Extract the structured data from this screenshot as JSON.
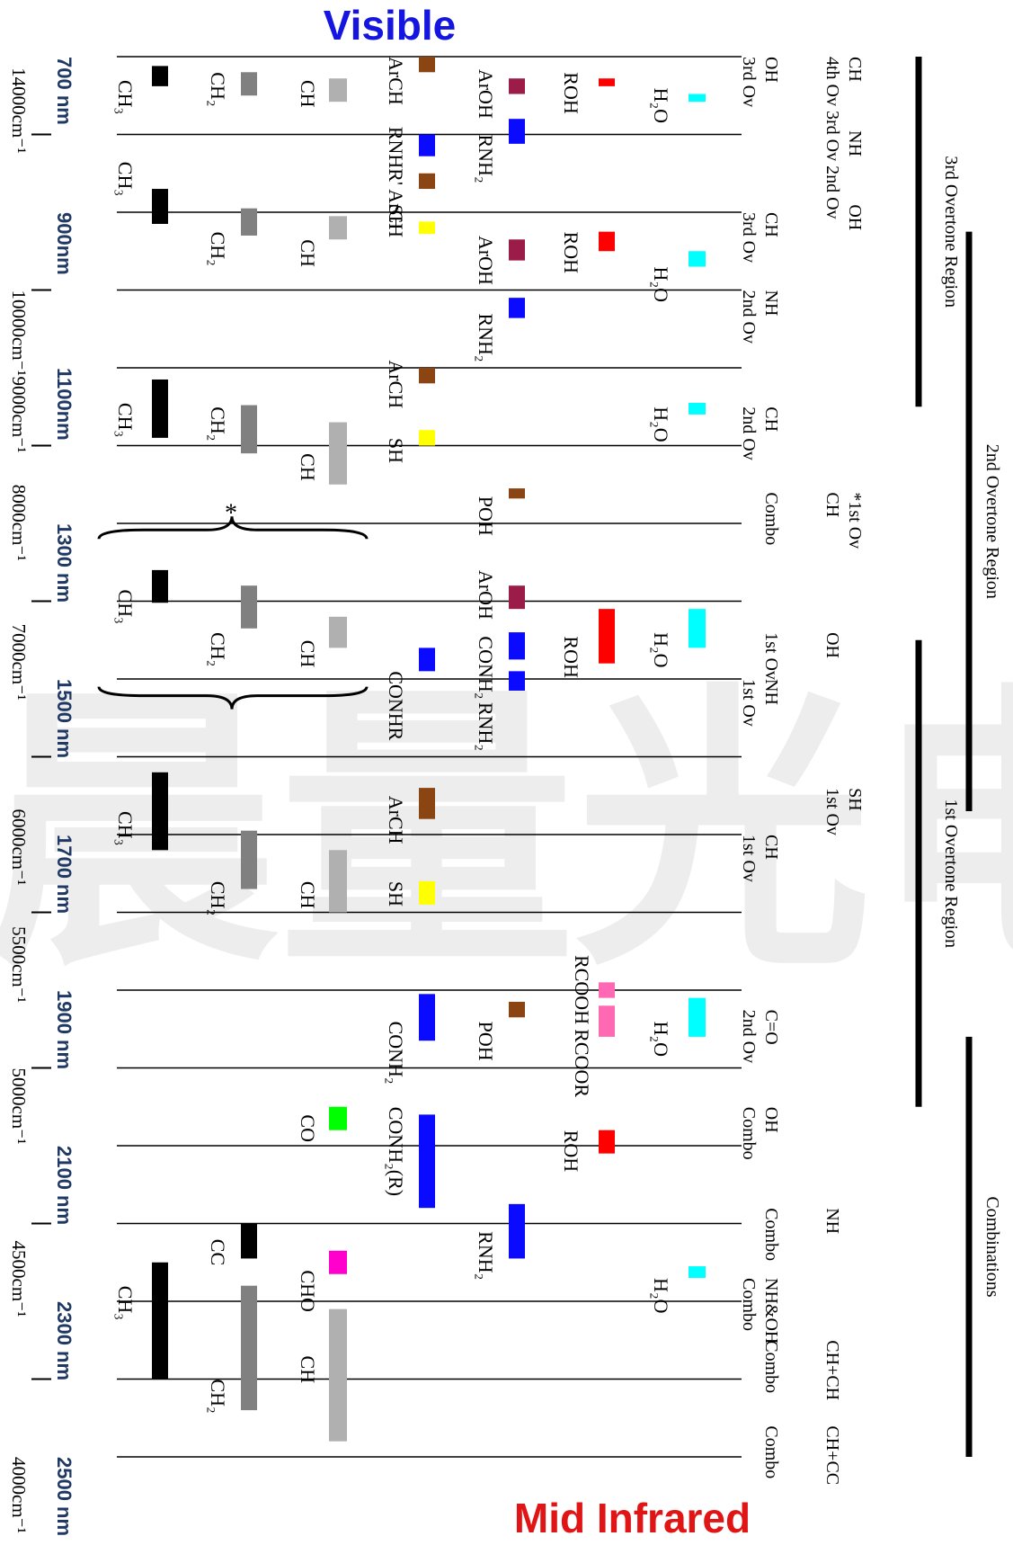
{
  "titles": {
    "top": "Visible",
    "bottom": "Mid Infrared",
    "top_color": "#1515e0",
    "bottom_color": "#e01515"
  },
  "watermark": "晨量光电",
  "chart_data": {
    "type": "band-assignment",
    "x_axis": {
      "unit": "nm",
      "range": [
        650,
        2570
      ],
      "wavelength_ticks": [
        {
          "nm": 700,
          "label": "700 nm"
        },
        {
          "nm": 900,
          "label": "900nm"
        },
        {
          "nm": 1100,
          "label": "1100nm"
        },
        {
          "nm": 1300,
          "label": "1300 nm"
        },
        {
          "nm": 1500,
          "label": "1500 nm"
        },
        {
          "nm": 1700,
          "label": "1700 nm"
        },
        {
          "nm": 1900,
          "label": "1900 nm"
        },
        {
          "nm": 2100,
          "label": "2100 nm"
        },
        {
          "nm": 2300,
          "label": "2300 nm"
        },
        {
          "nm": 2500,
          "label": "2500 nm"
        }
      ],
      "wavenumber_ticks": [
        {
          "nm": 714,
          "label": "14000cm⁻¹",
          "mark": "top"
        },
        {
          "nm": 1000,
          "label": "10000cm⁻¹",
          "mark": "bottom"
        },
        {
          "nm": 1111,
          "label": "9000cm⁻¹",
          "mark": "none"
        },
        {
          "nm": 1250,
          "label": "8000cm⁻¹",
          "mark": "bottom"
        },
        {
          "nm": 1429,
          "label": "7000cm⁻¹",
          "mark": "bottom"
        },
        {
          "nm": 1667,
          "label": "6000cm⁻¹",
          "mark": "bottom"
        },
        {
          "nm": 1818,
          "label": "5500cm⁻¹",
          "mark": "bottom"
        },
        {
          "nm": 2000,
          "label": "5000cm⁻¹",
          "mark": "bottom"
        },
        {
          "nm": 2222,
          "label": "4500cm⁻¹",
          "mark": "bottom"
        },
        {
          "nm": 2500,
          "label": "4000cm⁻¹",
          "mark": "top"
        }
      ],
      "minor_ticks": [
        800,
        1000,
        1200,
        1400,
        1600,
        1800,
        2000,
        2200,
        2400
      ]
    },
    "gridlines_nm": [
      700,
      800,
      900,
      1000,
      1100,
      1200,
      1300,
      1400,
      1500,
      1600,
      1700,
      1800,
      1900,
      2000,
      2100,
      2200,
      2300,
      2400,
      2500
    ],
    "regions": [
      {
        "name": "3rd Overtone Region",
        "range": [
          700,
          1150
        ]
      },
      {
        "name": "2nd Overtone Region",
        "range": [
          925,
          1670
        ]
      },
      {
        "name": "1st Overtone Region",
        "range": [
          1450,
          2050
        ]
      },
      {
        "name": "Combinations",
        "range": [
          1960,
          2500
        ]
      }
    ],
    "assignment_labels": [
      {
        "nm": 700,
        "col": 1,
        "text": "CH"
      },
      {
        "nm": 795,
        "col": 1,
        "text": "NH"
      },
      {
        "nm": 890,
        "col": 1,
        "text": "OH"
      },
      {
        "nm": 700,
        "col": 2,
        "text": "4th Ov 3rd Ov 2nd Ov"
      },
      {
        "nm": 700,
        "col": 3,
        "text": "OH"
      },
      {
        "nm": 700,
        "col": 4,
        "text": "3rd Ov"
      },
      {
        "nm": 900,
        "col": 3,
        "text": "CH"
      },
      {
        "nm": 900,
        "col": 4,
        "text": "3rd Ov"
      },
      {
        "nm": 1000,
        "col": 3,
        "text": "NH"
      },
      {
        "nm": 1000,
        "col": 4,
        "text": "2nd Ov"
      },
      {
        "nm": 1150,
        "col": 3,
        "text": "CH"
      },
      {
        "nm": 1150,
        "col": 4,
        "text": "2nd Ov"
      },
      {
        "nm": 1260,
        "col": 1,
        "text": "*1st Ov"
      },
      {
        "nm": 1260,
        "col": 2,
        "text": "CH"
      },
      {
        "nm": 1260,
        "col": 3,
        "text": "Combo"
      },
      {
        "nm": 1440,
        "col": 2,
        "text": "OH"
      },
      {
        "nm": 1440,
        "col": 3,
        "text": "1st Ov"
      },
      {
        "nm": 1500,
        "col": 3,
        "text": "NH"
      },
      {
        "nm": 1500,
        "col": 4,
        "text": "1st Ov"
      },
      {
        "nm": 1640,
        "col": 1,
        "text": "SH"
      },
      {
        "nm": 1640,
        "col": 2,
        "text": "1st Ov"
      },
      {
        "nm": 1700,
        "col": 3,
        "text": "CH"
      },
      {
        "nm": 1700,
        "col": 4,
        "text": "1st Ov"
      },
      {
        "nm": 1925,
        "col": 3,
        "text": "C=O"
      },
      {
        "nm": 1925,
        "col": 4,
        "text": "2nd Ov"
      },
      {
        "nm": 2050,
        "col": 3,
        "text": "OH"
      },
      {
        "nm": 2050,
        "col": 4,
        "text": "Combo"
      },
      {
        "nm": 2180,
        "col": 2,
        "text": "NH"
      },
      {
        "nm": 2180,
        "col": 3,
        "text": "Combo"
      },
      {
        "nm": 2270,
        "col": 3,
        "text": "NH&OH"
      },
      {
        "nm": 2270,
        "col": 4,
        "text": "Combo"
      },
      {
        "nm": 2350,
        "col": 2,
        "text": "CH+CH"
      },
      {
        "nm": 2350,
        "col": 3,
        "text": "Combo"
      },
      {
        "nm": 2460,
        "col": 2,
        "text": "CH+CC"
      },
      {
        "nm": 2460,
        "col": 3,
        "text": "Combo"
      }
    ],
    "lanes": [
      {
        "key": "h2o",
        "color": "#00ffff",
        "labels": [
          {
            "nm": 740,
            "text": "H₂O"
          },
          {
            "nm": 970,
            "text": "H₂O"
          },
          {
            "nm": 1150,
            "text": "H₂O"
          },
          {
            "nm": 1440,
            "text": "H₂O"
          },
          {
            "nm": 1940,
            "text": "H₂O"
          },
          {
            "nm": 2270,
            "text": "H₂O"
          }
        ],
        "bands": [
          [
            748,
            758
          ],
          [
            950,
            970
          ],
          [
            1145,
            1160
          ],
          [
            1410,
            1460
          ],
          [
            1910,
            1960
          ],
          [
            2255,
            2270
          ]
        ]
      },
      {
        "key": "roh",
        "color": "#ff0000",
        "labels": [
          {
            "nm": 720,
            "text": "ROH"
          },
          {
            "nm": 925,
            "text": "ROH"
          },
          {
            "nm": 1445,
            "text": "ROH"
          },
          {
            "nm": 2080,
            "text": "ROH"
          }
        ],
        "bands": [
          [
            728,
            738
          ],
          [
            925,
            950
          ],
          [
            1410,
            1480
          ],
          [
            2080,
            2110
          ]
        ]
      },
      {
        "key": "rcooh",
        "color": "#ff69b4",
        "labels": [
          {
            "nm": 1855,
            "text": "RCOOH"
          },
          {
            "nm": 1950,
            "text": "RCOOR"
          }
        ],
        "bands": [
          [
            1890,
            1910
          ],
          [
            1920,
            1960
          ]
        ]
      },
      {
        "key": "arrnh",
        "color": "#000000",
        "labels": [
          {
            "nm": 716,
            "text": "ArOH"
          },
          {
            "nm": 800,
            "text": "RNH₂"
          },
          {
            "nm": 930,
            "text": "ArOH"
          },
          {
            "nm": 1030,
            "text": "RNH₂"
          },
          {
            "nm": 1265,
            "text": "POH"
          },
          {
            "nm": 1360,
            "text": "ArOH"
          },
          {
            "nm": 1445,
            "text": "CONH₂"
          },
          {
            "nm": 1530,
            "text": "RNH₂"
          },
          {
            "nm": 1940,
            "text": "POH"
          },
          {
            "nm": 2210,
            "text": "RNH₂"
          }
        ],
        "bands": [
          {
            "range": [
              728,
              748
            ],
            "color": "#9b1c48"
          },
          {
            "range": [
              780,
              812
            ],
            "color": "#0a0aff"
          },
          {
            "range": [
              935,
              962
            ],
            "color": "#9b1c48"
          },
          {
            "range": [
              1010,
              1036
            ],
            "color": "#0a0aff"
          },
          {
            "range": [
              1255,
              1268
            ],
            "color": "#8b4513"
          },
          {
            "range": [
              1380,
              1410
            ],
            "color": "#9b1c48"
          },
          {
            "range": [
              1440,
              1475
            ],
            "color": "#0a0aff"
          },
          {
            "range": [
              1490,
              1515
            ],
            "color": "#0a0aff"
          },
          {
            "range": [
              1915,
              1935
            ],
            "color": "#8b4513"
          },
          {
            "range": [
              2175,
              2245
            ],
            "color": "#0a0aff"
          }
        ]
      },
      {
        "key": "misc",
        "color": "#000000",
        "labels": [
          {
            "nm": 700,
            "text": "ArCH"
          },
          {
            "nm": 790,
            "text": "RNHR' ArCH"
          },
          {
            "nm": 890,
            "text": "SH"
          },
          {
            "nm": 1090,
            "text": "ArCH"
          },
          {
            "nm": 1190,
            "text": "SH"
          },
          {
            "nm": 1490,
            "text": "CONHR"
          },
          {
            "nm": 1650,
            "text": "ArCH"
          },
          {
            "nm": 1760,
            "text": "SH"
          },
          {
            "nm": 1940,
            "text": "CONH₂"
          },
          {
            "nm": 2050,
            "text": "CONH₂(R)"
          }
        ],
        "bands": [
          {
            "range": [
              700,
              720
            ],
            "color": "#8b4513"
          },
          {
            "range": [
              800,
              828
            ],
            "color": "#0a0aff"
          },
          {
            "range": [
              850,
              870
            ],
            "color": "#8b4513"
          },
          {
            "range": [
              912,
              928
            ],
            "color": "#ffff00"
          },
          {
            "range": [
              1100,
              1120
            ],
            "color": "#8b4513"
          },
          {
            "range": [
              1180,
              1200
            ],
            "color": "#ffff00"
          },
          {
            "range": [
              1460,
              1490
            ],
            "color": "#0a0aff"
          },
          {
            "range": [
              1640,
              1680
            ],
            "color": "#8b4513"
          },
          {
            "range": [
              1760,
              1790
            ],
            "color": "#ffff00"
          },
          {
            "range": [
              1905,
              1965
            ],
            "color": "#0a0aff"
          },
          {
            "range": [
              2060,
              2180
            ],
            "color": "#0a0aff"
          }
        ]
      },
      {
        "key": "ch",
        "color": "#b0b0b0",
        "labels": [
          {
            "nm": 730,
            "text": "CH"
          },
          {
            "nm": 935,
            "text": "CH"
          },
          {
            "nm": 1210,
            "text": "CH"
          },
          {
            "nm": 1450,
            "text": "CH"
          },
          {
            "nm": 1760,
            "text": "CH"
          },
          {
            "nm": 2060,
            "text": "CO"
          },
          {
            "nm": 2260,
            "text": "CHO"
          },
          {
            "nm": 2370,
            "text": "CH"
          }
        ],
        "bands": [
          {
            "range": [
              728,
              758
            ]
          },
          {
            "range": [
              905,
              935
            ]
          },
          {
            "range": [
              1170,
              1250
            ]
          },
          {
            "range": [
              1420,
              1460
            ]
          },
          {
            "range": [
              1720,
              1800
            ]
          },
          {
            "range": [
              2050,
              2080
            ],
            "color": "#00ff00"
          },
          {
            "range": [
              2235,
              2265
            ],
            "color": "#ff00cc"
          },
          {
            "range": [
              2310,
              2480
            ]
          }
        ]
      },
      {
        "key": "ch2",
        "color": "#808080",
        "labels": [
          {
            "nm": 720,
            "text": "CH₂"
          },
          {
            "nm": 925,
            "text": "CH₂"
          },
          {
            "nm": 1150,
            "text": "CH₂"
          },
          {
            "nm": 1440,
            "text": "CH₂"
          },
          {
            "nm": 1760,
            "text": "CH₂"
          },
          {
            "nm": 2220,
            "text": "CC"
          },
          {
            "nm": 2400,
            "text": "CH₂"
          }
        ],
        "bands": [
          {
            "range": [
              720,
              750
            ]
          },
          {
            "range": [
              895,
              930
            ]
          },
          {
            "range": [
              1148,
              1210
            ]
          },
          {
            "range": [
              1380,
              1435
            ]
          },
          {
            "range": [
              1695,
              1770
            ]
          },
          {
            "range": [
              2200,
              2245
            ],
            "color": "#000000"
          },
          {
            "range": [
              2280,
              2440
            ]
          }
        ]
      },
      {
        "key": "ch3",
        "color": "#000000",
        "labels": [
          {
            "nm": 730,
            "text": "CH₃"
          },
          {
            "nm": 835,
            "text": "CH₃"
          },
          {
            "nm": 1145,
            "text": "CH₃"
          },
          {
            "nm": 1385,
            "text": "CH₃"
          },
          {
            "nm": 1670,
            "text": "CH₃"
          },
          {
            "nm": 2280,
            "text": "CH₃"
          }
        ],
        "bands": [
          [
            712,
            738
          ],
          [
            870,
            915
          ],
          [
            1115,
            1190
          ],
          [
            1360,
            1402
          ],
          [
            1620,
            1720
          ],
          [
            2250,
            2400
          ]
        ]
      }
    ],
    "brace": {
      "range": [
        1320,
        1510
      ],
      "label": "*"
    }
  }
}
